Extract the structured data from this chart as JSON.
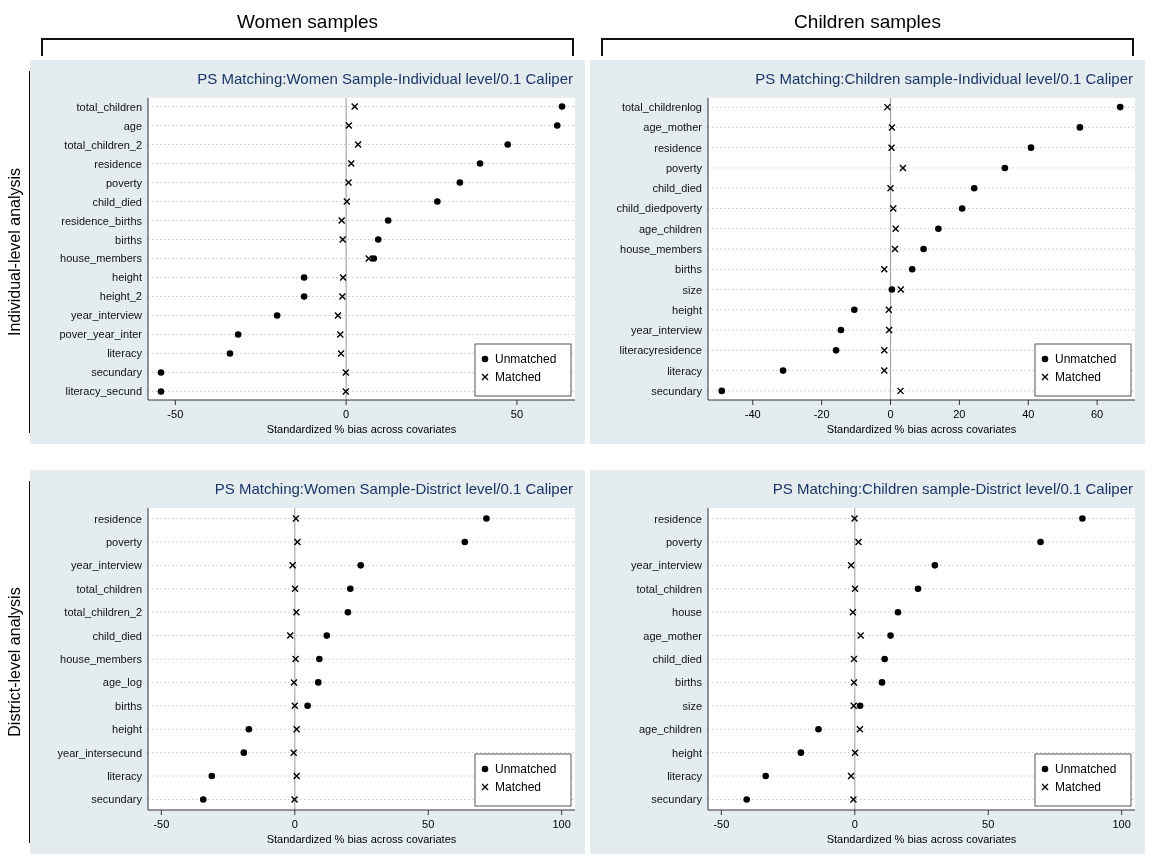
{
  "chart_data": [
    {
      "type": "scatter",
      "orientation": "horizontal",
      "title": "PS Matching:Women Sample-Individual level/0.1 Caliper",
      "xlabel": "Standardized % bias across covariates",
      "annotations": [
        "Women samples",
        "Individual-level analysis"
      ],
      "categories": [
        "total_children",
        "age",
        "total_children_2",
        "residence",
        "poverty",
        "child_died",
        "residence_births",
        "births",
        "house_members",
        "height",
        "height_2",
        "year_interview",
        "pover_year_inter",
        "literacy",
        "secundary",
        "literacy_secund"
      ],
      "xlim": [
        -58,
        67
      ],
      "xticks": [
        -50,
        0,
        50
      ],
      "grid": "y",
      "legend": "bottom right",
      "ref_lines": [
        {
          "axis": "x",
          "value": 0,
          "color": "#a8a8a8"
        }
      ],
      "series": [
        {
          "name": "Unmatched",
          "color": "#000000",
          "marker": "circle",
          "values": [
            63.2,
            61.8,
            47.3,
            39.2,
            33.3,
            26.7,
            12.3,
            9.4,
            8.1,
            -12.3,
            -12.3,
            -20.2,
            -31.6,
            -34,
            -54.2,
            -54.2
          ]
        },
        {
          "name": "Matched",
          "color": "#000000",
          "marker": "cross",
          "values": [
            2.5,
            0.8,
            3.5,
            1.5,
            0.7,
            0.2,
            -1.3,
            -1,
            6.6,
            -0.9,
            -1.1,
            -2.4,
            -1.7,
            -1.5,
            -0.1,
            -0.1
          ]
        }
      ]
    },
    {
      "type": "scatter",
      "orientation": "horizontal",
      "title": "PS Matching:Children sample-Individual level/0.1 Caliper",
      "xlabel": "Standardized % bias across covariates",
      "annotations": [
        "Children samples"
      ],
      "categories": [
        "total_childrenlog",
        "age_mother",
        "residence",
        "poverty",
        "child_died",
        "child_diedpoverty",
        "age_children",
        "house_members",
        "births",
        "size",
        "height",
        "year_interview",
        "literacyresidence",
        "literacy",
        "secundary"
      ],
      "xlim": [
        -53,
        71
      ],
      "xticks": [
        -40,
        -20,
        0,
        20,
        40,
        60
      ],
      "grid": "y",
      "legend": "bottom right",
      "ref_lines": [
        {
          "axis": "x",
          "value": 0,
          "color": "#a8a8a8"
        }
      ],
      "series": [
        {
          "name": "Unmatched",
          "color": "#000000",
          "marker": "circle",
          "values": [
            66.7,
            55,
            40.8,
            33.2,
            24.3,
            20.8,
            13.9,
            9.6,
            6.3,
            0.4,
            -10.5,
            -14.4,
            -15.8,
            -31.2,
            -49
          ]
        },
        {
          "name": "Matched",
          "color": "#000000",
          "marker": "cross",
          "values": [
            -0.9,
            0.4,
            0.3,
            3.6,
            0,
            0.8,
            1.5,
            1.3,
            -1.8,
            3,
            -0.5,
            -0.4,
            -1.8,
            -1.8,
            2.9
          ]
        }
      ]
    },
    {
      "type": "scatter",
      "orientation": "horizontal",
      "title": "PS Matching:Women Sample-District level/0.1 Caliper",
      "xlabel": "Standardized % bias across covariates",
      "annotations": [
        "District-level analysis"
      ],
      "categories": [
        "residence",
        "poverty",
        "year_interview",
        "total_children",
        "total_children_2",
        "child_died",
        "house_members",
        "age_log",
        "births",
        "height",
        "year_intersecund",
        "literacy",
        "secundary"
      ],
      "xlim": [
        -55,
        105
      ],
      "xticks": [
        -50,
        0,
        50,
        100
      ],
      "grid": "y",
      "legend": "bottom right",
      "ref_lines": [
        {
          "axis": "x",
          "value": 0,
          "color": "#a8a8a8"
        }
      ],
      "series": [
        {
          "name": "Unmatched",
          "color": "#000000",
          "marker": "circle",
          "values": [
            71.8,
            63.7,
            24.7,
            20.8,
            19.9,
            12,
            9.2,
            8.8,
            4.8,
            -17.2,
            -19.1,
            -31.1,
            -34.3
          ]
        },
        {
          "name": "Matched",
          "color": "#000000",
          "marker": "cross",
          "values": [
            0.4,
            1,
            -0.8,
            0.1,
            0.6,
            -1.7,
            0.3,
            -0.3,
            0,
            0.7,
            -0.4,
            0.7,
            -0.1
          ]
        }
      ]
    },
    {
      "type": "scatter",
      "orientation": "horizontal",
      "title": "PS Matching:Children sample-District level/0.1 Caliper",
      "xlabel": "Standardized % bias across covariates",
      "categories": [
        "residence",
        "poverty",
        "year_interview",
        "total_children",
        "house",
        "age_mother",
        "child_died",
        "births",
        "size",
        "age_children",
        "height",
        "literacy",
        "secundary"
      ],
      "xlim": [
        -55,
        105
      ],
      "xticks": [
        -50,
        0,
        50,
        100
      ],
      "grid": "y",
      "legend": "bottom right",
      "ref_lines": [
        {
          "axis": "x",
          "value": 0,
          "color": "#a8a8a8"
        }
      ],
      "series": [
        {
          "name": "Unmatched",
          "color": "#000000",
          "marker": "circle",
          "values": [
            85.3,
            69.6,
            30,
            23.7,
            16.2,
            13.4,
            11.2,
            10.2,
            2,
            -13.6,
            -20.2,
            -33.4,
            -40.5
          ]
        },
        {
          "name": "Matched",
          "color": "#000000",
          "marker": "cross",
          "values": [
            -0.1,
            1.4,
            -1.4,
            0.1,
            -0.7,
            2.2,
            -0.3,
            -0.3,
            -0.4,
            1.9,
            0.1,
            -1.4,
            -0.5
          ]
        }
      ]
    }
  ]
}
